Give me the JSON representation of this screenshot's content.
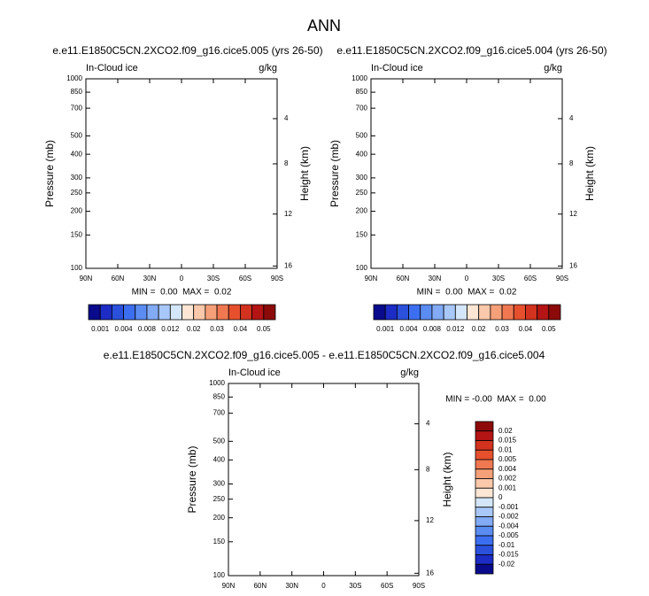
{
  "title": "ANN",
  "panels": [
    {
      "title": "e.e11.E1850C5CN.2XCO2.f09_g16.cice5.005 (yrs 26-50)",
      "left_label": "In-Cloud ice",
      "right_label": "g/kg",
      "y_label": "Pressure (mb)",
      "y2_label": "Height (km)",
      "ylim": [
        1000,
        100
      ],
      "yticks": [
        100,
        150,
        200,
        250,
        300,
        400,
        500,
        700,
        850,
        1000
      ],
      "y2ticks": [
        4,
        8,
        12,
        16
      ],
      "xlim": [
        90,
        -90
      ],
      "xticks": [
        {
          "value": 90,
          "label": "90N"
        },
        {
          "value": 60,
          "label": "60N"
        },
        {
          "value": 30,
          "label": "30N"
        },
        0,
        {
          "value": -30,
          "label": "30S"
        },
        {
          "value": -60,
          "label": "60S"
        },
        {
          "value": -90,
          "label": "90S"
        }
      ],
      "min_max": "MIN =  0.00  MAX =  0.02",
      "colorbar": {
        "orientation": "horizontal",
        "labels": [
          0.001,
          0.004,
          0.008,
          0.012,
          0.02,
          0.03,
          0.04,
          0.05
        ],
        "colors": [
          "#0a0a8c",
          "#1c2cc4",
          "#2a50dc",
          "#3c6ef0",
          "#5a8cf2",
          "#82aaf5",
          "#a8c8fa",
          "#d4e6fa",
          "#fde6d4",
          "#fac8aa",
          "#f5a078",
          "#f07850",
          "#e6502d",
          "#d2321e",
          "#b41414",
          "#8c0a0a"
        ]
      }
    },
    {
      "title": "e.e11.E1850C5CN.2XCO2.f09_g16.cice5.004 (yrs 26-50)",
      "left_label": "In-Cloud ice",
      "right_label": "g/kg",
      "y_label": "Pressure (mb)",
      "y2_label": "Height (km)",
      "ylim": [
        1000,
        100
      ],
      "yticks": [
        100,
        150,
        200,
        250,
        300,
        400,
        500,
        700,
        850,
        1000
      ],
      "y2ticks": [
        4,
        8,
        12,
        16
      ],
      "xlim": [
        90,
        -90
      ],
      "xticks": [
        {
          "value": 90,
          "label": "90N"
        },
        {
          "value": 60,
          "label": "60N"
        },
        {
          "value": 30,
          "label": "30N"
        },
        0,
        {
          "value": -30,
          "label": "30S"
        },
        {
          "value": -60,
          "label": "60S"
        },
        {
          "value": -90,
          "label": "90S"
        }
      ],
      "min_max": "MIN =  0.00  MAX =  0.02",
      "colorbar": {
        "orientation": "horizontal",
        "labels": [
          0.001,
          0.004,
          0.008,
          0.012,
          0.02,
          0.03,
          0.04,
          0.05
        ],
        "colors": [
          "#0a0a8c",
          "#1c2cc4",
          "#2a50dc",
          "#3c6ef0",
          "#5a8cf2",
          "#82aaf5",
          "#a8c8fa",
          "#d4e6fa",
          "#fde6d4",
          "#fac8aa",
          "#f5a078",
          "#f07850",
          "#e6502d",
          "#d2321e",
          "#b41414",
          "#8c0a0a"
        ]
      }
    },
    {
      "title": "e.e11.E1850C5CN.2XCO2.f09_g16.cice5.005 - e.e11.E1850C5CN.2XCO2.f09_g16.cice5.004",
      "left_label": "In-Cloud ice",
      "right_label": "g/kg",
      "y_label": "Pressure (mb)",
      "y2_label": "Height (km)",
      "ylim": [
        1000,
        100
      ],
      "yticks": [
        100,
        150,
        200,
        250,
        300,
        400,
        500,
        700,
        850,
        1000
      ],
      "y2ticks": [
        4,
        8,
        12,
        16
      ],
      "xlim": [
        90,
        -90
      ],
      "xticks": [
        {
          "value": 90,
          "label": "90N"
        },
        {
          "value": 60,
          "label": "60N"
        },
        {
          "value": 30,
          "label": "30N"
        },
        0,
        {
          "value": -30,
          "label": "30S"
        },
        {
          "value": -60,
          "label": "60S"
        },
        {
          "value": -90,
          "label": "90S"
        }
      ],
      "min_max": "MIN = -0.00  MAX =  0.00",
      "colorbar": {
        "orientation": "vertical",
        "labels": [
          0.02,
          0.015,
          0.01,
          0.005,
          0.004,
          0.002,
          0.001,
          0,
          -0.001,
          -0.002,
          -0.004,
          -0.005,
          -0.01,
          -0.015,
          -0.02
        ],
        "colors": [
          "#8c0a0a",
          "#b41414",
          "#d2321e",
          "#e6502d",
          "#f07850",
          "#f5a078",
          "#fac8aa",
          "#fde6d4",
          "#d4e6fa",
          "#a8c8fa",
          "#82aaf5",
          "#5a8cf2",
          "#3c6ef0",
          "#2a50dc",
          "#1c2cc4",
          "#0a0a8c"
        ]
      }
    }
  ]
}
